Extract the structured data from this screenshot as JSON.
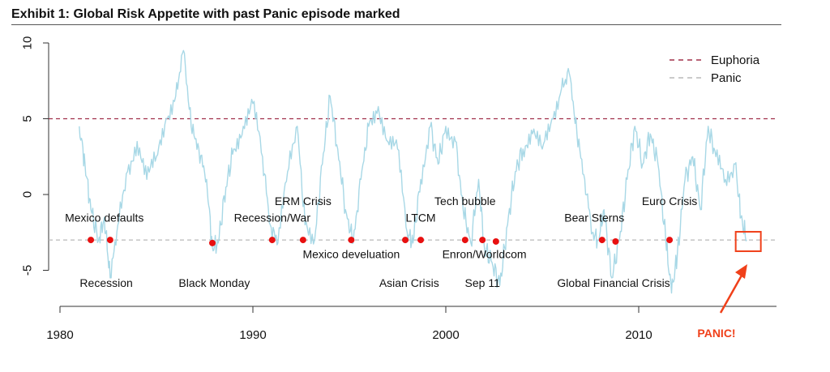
{
  "title": "Exhibit 1: Global Risk Appetite with past Panic episode marked",
  "colors": {
    "series": "#a8d8e6",
    "euphoria": "#a0304a",
    "panic_line": "#b8b8b8",
    "dots": "#e81010",
    "callout": "#f0401a"
  },
  "chart_data": {
    "type": "line",
    "title": "Exhibit 1: Global Risk Appetite with past Panic episode marked",
    "xlabel": "",
    "ylabel": "",
    "xlim": [
      1980,
      2018
    ],
    "ylim": [
      -7.5,
      10
    ],
    "x_ticks": [
      1980,
      1990,
      2000,
      2010
    ],
    "y_ticks": [
      10,
      5,
      0,
      -5
    ],
    "grid": false,
    "legend": {
      "position": "top-right",
      "entries": [
        {
          "label": "Euphoria",
          "style": "dashed",
          "color": "#a0304a"
        },
        {
          "label": "Panic",
          "style": "dashed",
          "color": "#b8b8b8"
        }
      ]
    },
    "hlines": [
      {
        "name": "Euphoria",
        "y": 5
      },
      {
        "name": "Panic",
        "y": -3
      }
    ],
    "series": [
      {
        "x": [
          1981.0,
          1981.3,
          1981.6,
          1982.0,
          1982.3,
          1982.6,
          1983.0,
          1983.5,
          1984.0,
          1984.5,
          1985.0,
          1985.5,
          1986.0,
          1986.4,
          1986.8,
          1987.2,
          1987.6,
          1987.9,
          1988.2,
          1988.6,
          1989.0,
          1989.5,
          1990.0,
          1990.5,
          1990.9,
          1991.3,
          1991.8,
          1992.3,
          1992.7,
          1993.2,
          1993.6,
          1994.0,
          1994.4,
          1994.8,
          1995.2,
          1995.6,
          1996.0,
          1996.5,
          1997.0,
          1997.5,
          1998.0,
          1998.3,
          1998.7,
          1999.2,
          1999.6,
          2000.0,
          2000.5,
          2000.9,
          2001.3,
          2001.7,
          2002.0,
          2002.4,
          2002.8,
          2003.2,
          2003.6,
          2004.0,
          2004.5,
          2005.0,
          2005.5,
          2006.0,
          2006.4,
          2006.8,
          2007.2,
          2007.6,
          2007.9,
          2008.2,
          2008.6,
          2009.0,
          2009.4,
          2009.8,
          2010.2,
          2010.6,
          2011.0,
          2011.4,
          2011.7,
          2012.0,
          2012.4,
          2012.8,
          2013.2,
          2013.6,
          2014.0,
          2014.5,
          2015.0,
          2015.3,
          2015.6
        ],
        "values": [
          4.5,
          2.0,
          -1.0,
          -3.0,
          -1.5,
          -5.5,
          -2.0,
          1.5,
          3.5,
          1.0,
          2.5,
          5.0,
          6.5,
          9.5,
          4.5,
          3.0,
          1.0,
          -3.5,
          -3.2,
          0.5,
          3.0,
          4.5,
          6.0,
          2.5,
          -2.0,
          -3.2,
          1.5,
          4.5,
          -2.0,
          -3.0,
          2.0,
          6.5,
          3.0,
          -1.0,
          -3.2,
          1.0,
          4.5,
          5.8,
          3.5,
          3.0,
          -2.5,
          -3.2,
          1.0,
          4.5,
          2.0,
          4.5,
          3.5,
          -1.0,
          -3.2,
          1.0,
          -3.5,
          -4.5,
          -6.0,
          -2.0,
          1.5,
          3.0,
          4.0,
          3.0,
          5.0,
          7.0,
          8.0,
          4.0,
          1.0,
          -2.5,
          -3.0,
          -1.0,
          -5.5,
          -3.0,
          1.0,
          4.5,
          2.0,
          4.0,
          2.0,
          -3.0,
          -6.5,
          -4.0,
          1.0,
          2.5,
          -1.0,
          4.5,
          2.5,
          1.0,
          2.0,
          -1.5,
          -3.0
        ]
      }
    ],
    "points": [
      {
        "x": 1981.6,
        "y": -3
      },
      {
        "x": 1982.6,
        "y": -3
      },
      {
        "x": 1987.9,
        "y": -3.2
      },
      {
        "x": 1991.0,
        "y": -3
      },
      {
        "x": 1992.6,
        "y": -3
      },
      {
        "x": 1995.1,
        "y": -3
      },
      {
        "x": 1997.9,
        "y": -3
      },
      {
        "x": 1998.7,
        "y": -3
      },
      {
        "x": 2001.0,
        "y": -3
      },
      {
        "x": 2001.9,
        "y": -3
      },
      {
        "x": 2002.6,
        "y": -3.1
      },
      {
        "x": 2008.1,
        "y": -3
      },
      {
        "x": 2008.8,
        "y": -3.1
      },
      {
        "x": 2011.6,
        "y": -3
      }
    ],
    "annotations": [
      {
        "text": "Mexico defaults",
        "x": 1982.3,
        "y": -1.8
      },
      {
        "text": "Recession",
        "x": 1982.4,
        "y": -6.1
      },
      {
        "text": "Black Monday",
        "x": 1988.0,
        "y": -6.1
      },
      {
        "text": "Recession/War",
        "x": 1991.0,
        "y": -1.8
      },
      {
        "text": "ERM Crisis",
        "x": 1992.6,
        "y": -0.7
      },
      {
        "text": "Mexico develuation",
        "x": 1995.1,
        "y": -4.2
      },
      {
        "text": "LTCM",
        "x": 1998.7,
        "y": -1.8
      },
      {
        "text": "Asian Crisis",
        "x": 1998.1,
        "y": -6.1
      },
      {
        "text": "Tech bubble",
        "x": 2001.0,
        "y": -0.7
      },
      {
        "text": "Enron/Worldcom",
        "x": 2002.0,
        "y": -4.2
      },
      {
        "text": "Sep 11",
        "x": 2001.9,
        "y": -6.1
      },
      {
        "text": "Bear Sterns",
        "x": 2007.7,
        "y": -1.8
      },
      {
        "text": "Global Financial Crisis",
        "x": 2008.7,
        "y": -6.1
      },
      {
        "text": "Euro Crisis",
        "x": 2011.6,
        "y": -0.7
      }
    ],
    "callout": {
      "text": "PANIC!",
      "box_x": 2015.7,
      "box_y": -3.1
    }
  }
}
